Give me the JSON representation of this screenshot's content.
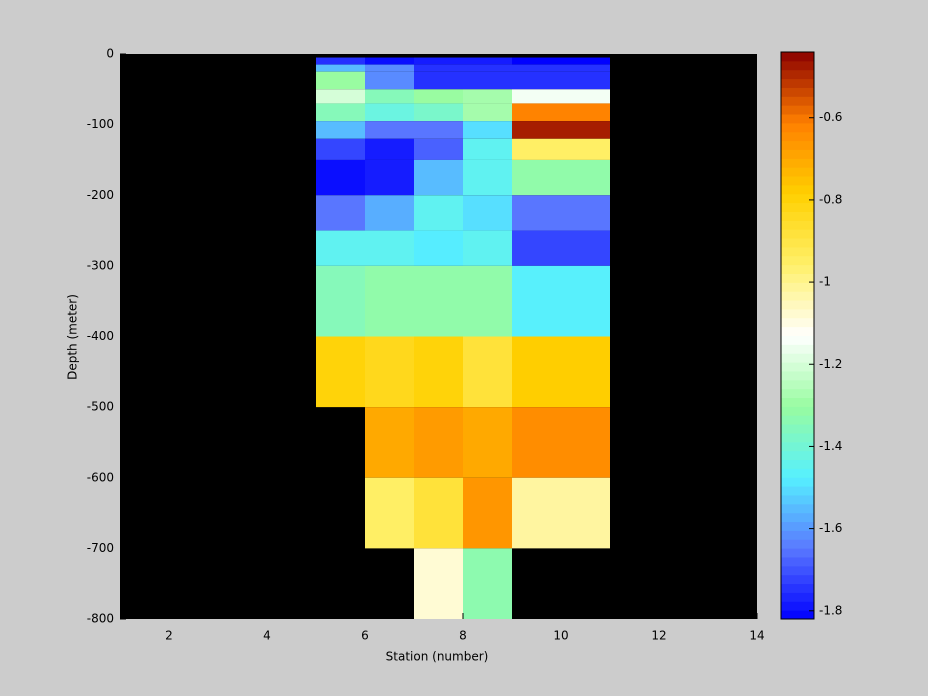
{
  "chart_data": {
    "type": "heatmap",
    "xlabel": "Station (number)",
    "ylabel": "Depth (meter)",
    "xlim": [
      1,
      14
    ],
    "xticks": [
      2,
      4,
      6,
      8,
      10,
      12,
      14
    ],
    "ylim": [
      -800,
      0
    ],
    "yticks": [
      0,
      -100,
      -200,
      -300,
      -400,
      -500,
      -600,
      -700,
      -800
    ],
    "x_edges": [
      5,
      6,
      7,
      8,
      9,
      11
    ],
    "y_edges": [
      -5,
      -15,
      -25,
      -50,
      -70,
      -95,
      -120,
      -150,
      -200,
      -250,
      -300,
      -400,
      -500,
      -600,
      -700,
      -800
    ],
    "values": [
      [
        -1.75,
        -1.8,
        -1.78,
        -1.78,
        -1.82
      ],
      [
        -1.55,
        -1.62,
        -1.75,
        -1.75,
        -1.75
      ],
      [
        -1.3,
        -1.62,
        -1.75,
        -1.75,
        -1.75
      ],
      [
        -1.2,
        -1.35,
        -1.3,
        -1.28,
        -1.15
      ],
      [
        -1.35,
        -1.42,
        -1.38,
        -1.28,
        -0.62
      ],
      [
        -1.55,
        -1.65,
        -1.65,
        -1.5,
        -0.48
      ],
      [
        -1.72,
        -1.78,
        -1.68,
        -1.45,
        -0.95
      ],
      [
        -1.8,
        -1.78,
        -1.55,
        -1.45,
        -1.32
      ],
      [
        -1.65,
        -1.57,
        -1.45,
        -1.5,
        -1.65
      ],
      [
        -1.45,
        -1.45,
        -1.48,
        -1.45,
        -1.72
      ],
      [
        -1.35,
        -1.32,
        -1.32,
        -1.32,
        -1.47
      ],
      [
        -0.8,
        -0.83,
        -0.8,
        -0.88,
        -0.78
      ],
      [
        null,
        -0.7,
        -0.67,
        -0.7,
        -0.64
      ],
      [
        null,
        -0.95,
        -0.88,
        -0.66,
        -1.02
      ],
      [
        null,
        null,
        -1.08,
        -1.33,
        null
      ]
    ],
    "background": "#000000",
    "clim": [
      -1.82,
      -0.44
    ],
    "colormap": [
      "#0000ff",
      "#5a78ff",
      "#56f0ff",
      "#98fca0",
      "#ffffff",
      "#fff06a",
      "#ffd000",
      "#ff8000",
      "#8b0000"
    ],
    "cticks": [
      -1.8,
      -1.6,
      -1.4,
      -1.2,
      -1,
      -0.8,
      -0.6
    ]
  }
}
